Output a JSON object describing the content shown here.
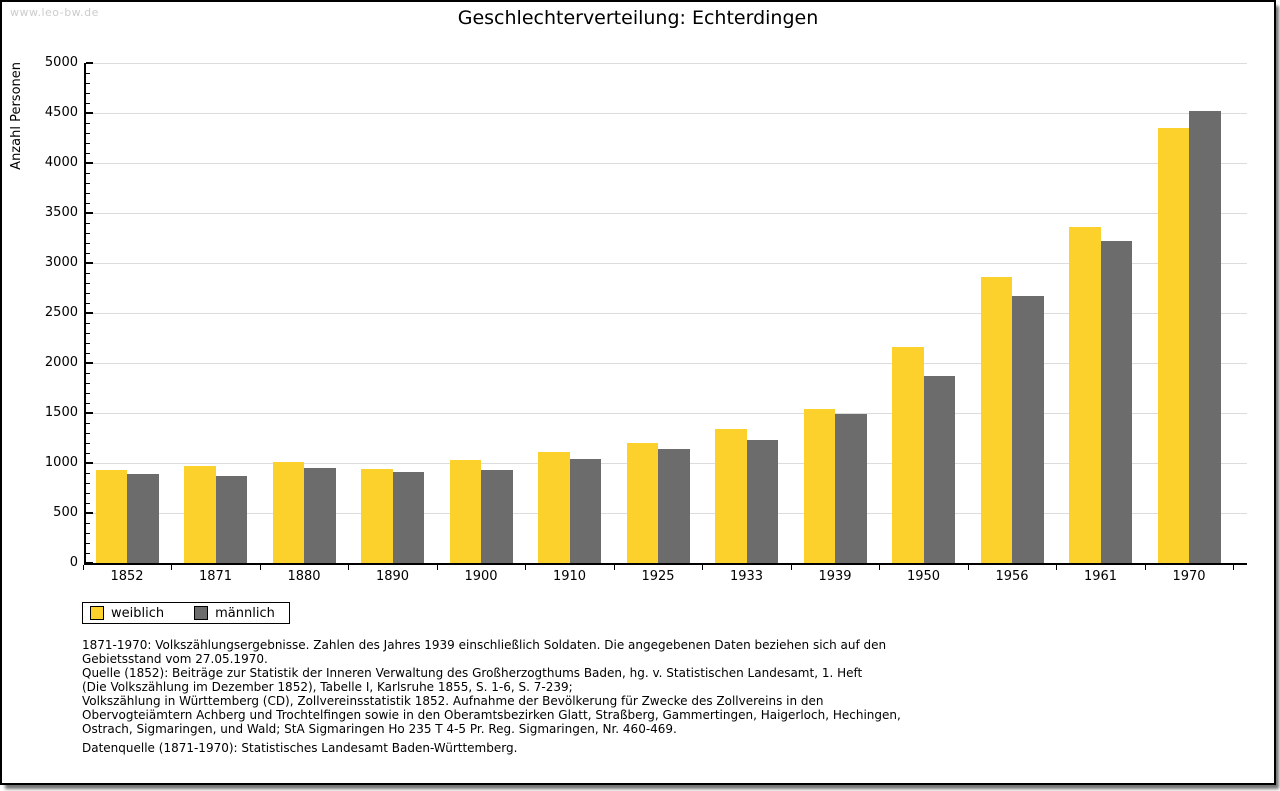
{
  "watermark": "www.leo-bw.de",
  "title": "Geschlechterverteilung: Echterdingen",
  "chart_data": {
    "type": "bar",
    "title": "Geschlechterverteilung: Echterdingen",
    "xlabel": "",
    "ylabel": "Anzahl Personen",
    "ylim": [
      0,
      5000
    ],
    "ytick_major_step": 500,
    "ytick_minor_step": 100,
    "grid": true,
    "legend_position": "bottom-left",
    "categories": [
      "1852",
      "1871",
      "1880",
      "1890",
      "1900",
      "1910",
      "1925",
      "1933",
      "1939",
      "1950",
      "1956",
      "1961",
      "1970"
    ],
    "series": [
      {
        "name": "weiblich",
        "color": "#FCD12B",
        "values": [
          930,
          970,
          1015,
          945,
          1035,
          1110,
          1200,
          1340,
          1545,
          2165,
          2860,
          3365,
          4355
        ]
      },
      {
        "name": "männlich",
        "color": "#6C6C6C",
        "values": [
          890,
          875,
          955,
          910,
          930,
          1045,
          1140,
          1230,
          1490,
          1875,
          2670,
          3225,
          4525
        ]
      }
    ]
  },
  "footnotes": {
    "lines": [
      "1871-1970: Volkszählungsergebnisse. Zahlen des Jahres 1939 einschließlich Soldaten. Die angegebenen Daten beziehen sich auf den",
      "Gebietsstand vom 27.05.1970.",
      "Quelle (1852): Beiträge zur Statistik der Inneren Verwaltung des Großherzogthums Baden, hg. v. Statistischen Landesamt, 1. Heft",
      "(Die Volkszählung im Dezember 1852), Tabelle I, Karlsruhe 1855, S. 1-6, S. 7-239;",
      "Volkszählung in Württemberg (CD), Zollvereinsstatistik 1852. Aufnahme der Bevölkerung für Zwecke des Zollvereins in den",
      "Obervogteiämtern Achberg und Trochtelfingen sowie in den Oberamtsbezirken Glatt, Straßberg, Gammertingen, Haigerloch, Hechingen,",
      "Ostrach, Sigmaringen, und Wald; StA Sigmaringen Ho 235 T 4-5 Pr. Reg. Sigmaringen, Nr. 460-469."
    ],
    "datasource": "Datenquelle (1871-1970): Statistisches Landesamt Baden-Württemberg."
  },
  "colors": {
    "weiblich": "#FCD12B",
    "maennlich": "#6C6C6C",
    "gridline": "#DCDCDC",
    "axis": "#000000",
    "watermark": "#CCCCCC",
    "page_background": "#FFFFFF"
  }
}
